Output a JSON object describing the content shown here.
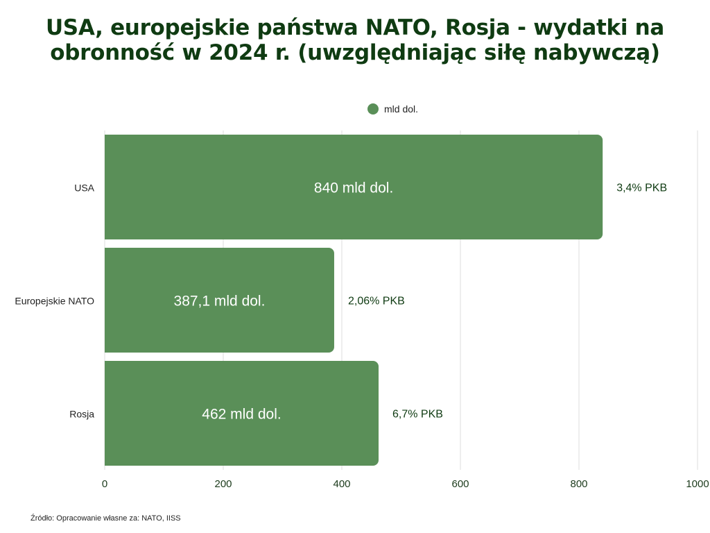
{
  "chart_data": {
    "type": "bar",
    "orientation": "horizontal",
    "title": "USA, europejskie państwa NATO, Rosja - wydatki na obronność w 2024 r. (uwzględniając siłę nabywczą)",
    "categories": [
      "USA",
      "Europejskie NATO",
      "Rosja"
    ],
    "series": [
      {
        "name": "mld dol.",
        "values": [
          840,
          387.1,
          462
        ],
        "color": "#5a8f58"
      }
    ],
    "data_labels": [
      "840 mld dol.",
      "387,1 mld dol.",
      "462 mld dol."
    ],
    "annotations": [
      "3,4% PKB",
      "2,06% PKB",
      "6,7% PKB"
    ],
    "xlim": [
      0,
      1000
    ],
    "xticks": [
      "0",
      "200",
      "400",
      "600",
      "800",
      "1000"
    ],
    "grid": true,
    "legend": "top-center",
    "xlabel": "",
    "ylabel": ""
  },
  "source": "Źródło: Opracowanie własne za: NATO, IISS"
}
